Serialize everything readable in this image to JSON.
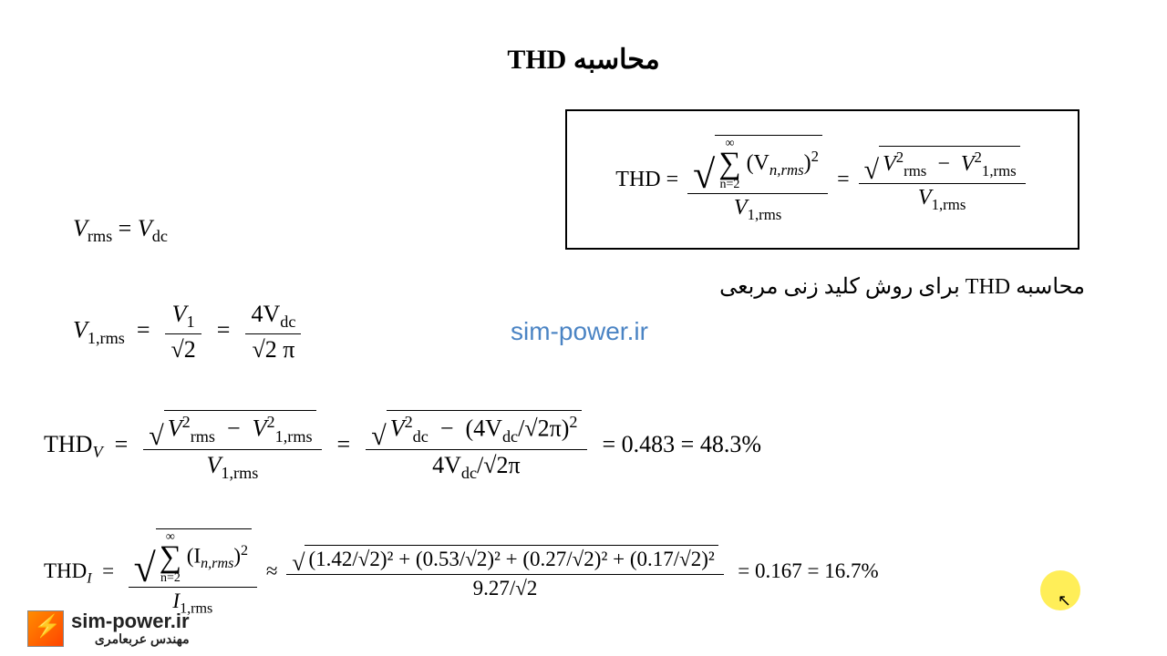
{
  "title": "محاسبه THD",
  "thd_box_label": "THD =",
  "sub_title": "محاسبه THD برای روش کلید زنی مربعی",
  "watermark_center": "sim-power.ir",
  "eq1": {
    "lhs_var": "V",
    "lhs_sub": "rms",
    "eq": " = ",
    "rhs_var": "V",
    "rhs_sub": "dc"
  },
  "eq2": {
    "lhs_var": "V",
    "lhs_sub": "1,rms",
    "f1_num_var": "V",
    "f1_num_sub": "1",
    "f1_den": "√2",
    "f2_num": "4V",
    "f2_num_sub": "dc",
    "f2_den": "√2 π"
  },
  "eq3": {
    "lhs": "THD",
    "lhs_sub": "V",
    "f1_num_inner_a": "V",
    "f1_num_inner_a_sup": "2",
    "f1_num_inner_a_sub": "rms",
    "f1_num_inner_b": "V",
    "f1_num_inner_b_sup": "2",
    "f1_num_inner_b_sub": "1,rms",
    "f1_den_var": "V",
    "f1_den_sub": "1,rms",
    "f2_num_a": "V",
    "f2_num_a_sup": "2",
    "f2_num_a_sub": "dc",
    "f2_num_b": "(4V",
    "f2_num_b_sub": "dc",
    "f2_num_b_rest": "/√2π)",
    "f2_num_b_sup": "2",
    "f2_den": "4V",
    "f2_den_sub": "dc",
    "f2_den_rest": "/√2π",
    "result_dec": "= 0.483 = 48.3%"
  },
  "eq4": {
    "lhs": "THD",
    "lhs_sub": "I",
    "sum_top": "∞",
    "sum_bot": "n=2",
    "sum_term_var": "(I",
    "sum_term_sub": "n,rms",
    "sum_term_rest": ")",
    "sum_term_sup": "2",
    "f1_den_var": "I",
    "f1_den_sub": "1,rms",
    "approx": " ≈ ",
    "f2_num": "(1.42/√2)² + (0.53/√2)² + (0.27/√2)² + (0.17/√2)²",
    "f2_den": "9.27/√2",
    "result_dec": "= 0.167 = 16.7%"
  },
  "thd_formula": {
    "sum_top": "∞",
    "sum_bot": "n=2",
    "sum_term": "(V",
    "sum_term_sub": "n,rms",
    "sum_term_rest": ")",
    "sum_term_sup": "2",
    "den1_var": "V",
    "den1_sub": "1,rms",
    "num2_a": "V",
    "num2_a_sup": "2",
    "num2_a_sub": "rms",
    "num2_b": "V",
    "num2_b_sup": "2",
    "num2_b_sub": "1,rms",
    "den2_var": "V",
    "den2_sub": "1,rms"
  },
  "logo": {
    "main": "sim-power.ir",
    "sub": "مهندس عربعامری"
  },
  "colors": {
    "watermark": "#4b84c4",
    "highlight": "#ffeb3b",
    "text": "#000000",
    "background": "#ffffff"
  }
}
